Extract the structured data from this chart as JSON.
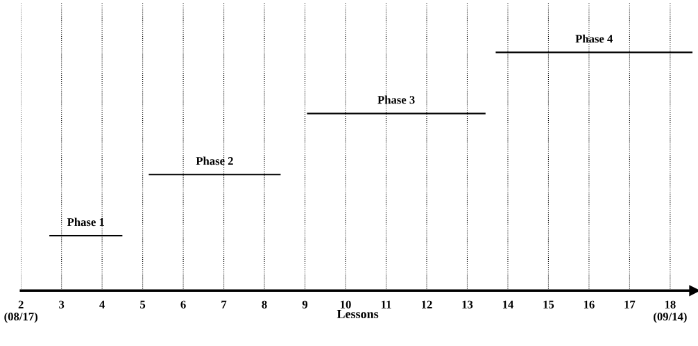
{
  "chart_data": {
    "type": "bar",
    "orientation": "horizontal",
    "xlabel": "Lessons",
    "categories": [
      "Phase 4",
      "Phase 3",
      "Phase 2",
      "Phase 1"
    ],
    "base": [
      13.7,
      9.05,
      5.15,
      2.7
    ],
    "values": [
      4.85,
      4.4,
      3.25,
      1.8
    ],
    "color": "#000000",
    "xlim": [
      2,
      18.6
    ],
    "xticks": [
      {
        "value": 2,
        "label": "2\n(08/17)"
      },
      3,
      4,
      5,
      6,
      7,
      8,
      9,
      10,
      11,
      12,
      13,
      14,
      15,
      16,
      17,
      {
        "value": 18,
        "label": "18\n(09/14)"
      }
    ],
    "grid": "x",
    "tick_labels": "x"
  }
}
